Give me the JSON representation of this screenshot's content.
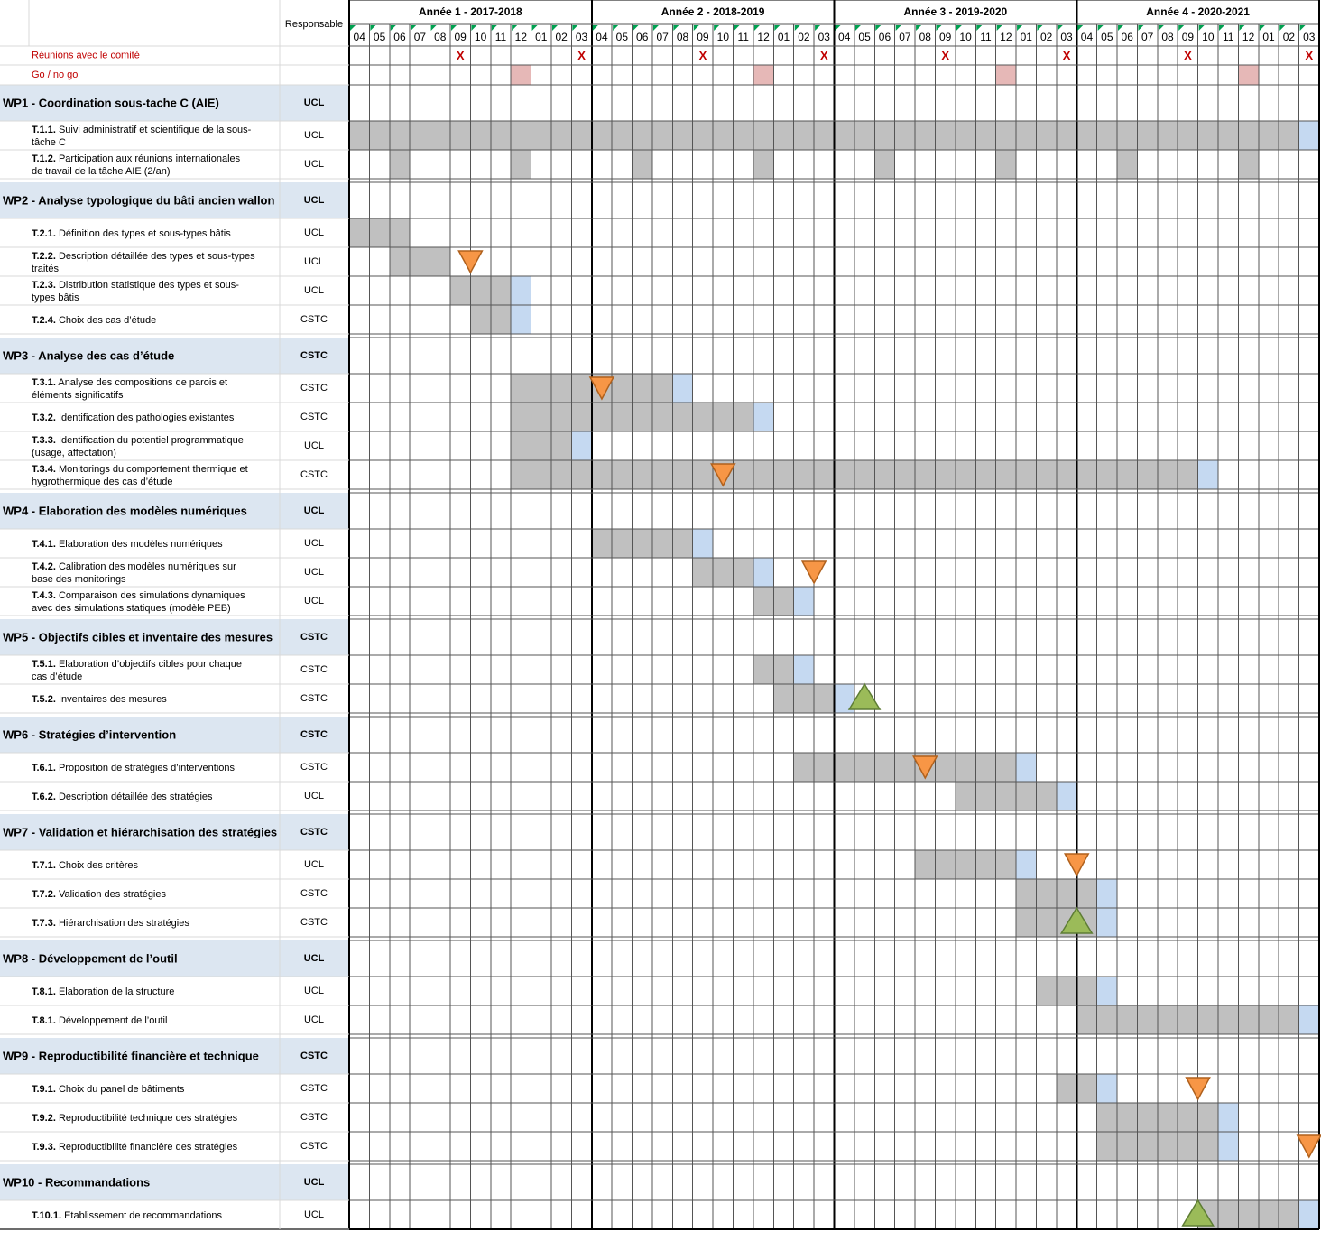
{
  "chart_data": {
    "type": "gantt",
    "header": {
      "responsable": "Responsable"
    },
    "years": [
      {
        "label": "Année 1 - 2017-2018"
      },
      {
        "label": "Année 2 - 2018-2019"
      },
      {
        "label": "Année 3 - 2019-2020"
      },
      {
        "label": "Année 4 - 2020-2021"
      }
    ],
    "months": [
      "04",
      "05",
      "06",
      "07",
      "08",
      "09",
      "10",
      "11",
      "12",
      "01",
      "02",
      "03"
    ],
    "colors": {
      "bar": "#c0c0c0",
      "end": "#c5d9f1",
      "wp_band": "#dce6f1",
      "go_no_go": "#e6b8b7",
      "meeting_mark": "#c00000",
      "milestone_down": "#f79646",
      "milestone_up": "#9bbb59"
    },
    "special_rows": [
      {
        "label": "Réunions avec le comité",
        "mark": "X",
        "months": [
          6,
          12,
          18,
          24,
          30,
          36,
          42,
          48
        ]
      },
      {
        "label": "Go / no go",
        "months": [
          9,
          21,
          33,
          45
        ]
      }
    ],
    "rows": [
      {
        "kind": "wp",
        "label": "WP1 - Coordination sous-tache C (AIE)",
        "resp": "UCL"
      },
      {
        "kind": "task",
        "code": "T.1.1.",
        "text": " Suivi administratif et scientifique de la sous-",
        "text2": "tâche C",
        "resp": "UCL",
        "bars": [
          [
            1,
            47
          ]
        ],
        "end": [
          48
        ]
      },
      {
        "kind": "task",
        "code": "T.1.2.",
        "text": " Participation aux réunions internationales",
        "text2": "de travail de la tâche AIE (2/an)",
        "resp": "UCL",
        "bars": [
          [
            3,
            3
          ],
          [
            9,
            9
          ],
          [
            15,
            15
          ],
          [
            21,
            21
          ],
          [
            27,
            27
          ],
          [
            33,
            33
          ],
          [
            39,
            39
          ],
          [
            45,
            45
          ]
        ]
      },
      {
        "kind": "wp",
        "label": "WP2 - Analyse typologique du bâti ancien wallon",
        "resp": "UCL"
      },
      {
        "kind": "task",
        "code": "T.2.1.",
        "text": " Définition des types et sous-types bâtis",
        "resp": "UCL",
        "bars": [
          [
            1,
            3
          ]
        ]
      },
      {
        "kind": "task",
        "code": "T.2.2.",
        "text": " Description détaillée des types et sous-types",
        "text2": "traités",
        "resp": "UCL",
        "bars": [
          [
            3,
            5
          ]
        ],
        "milestones": [
          {
            "type": "down",
            "month": 6.0
          }
        ]
      },
      {
        "kind": "task",
        "code": "T.2.3.",
        "text": " Distribution statistique des types et sous-",
        "text2": "types bâtis",
        "resp": "UCL",
        "bars": [
          [
            6,
            8
          ]
        ],
        "end": [
          9
        ]
      },
      {
        "kind": "task",
        "code": "T.2.4.",
        "text": " Choix des cas d’étude",
        "resp": "CSTC",
        "bars": [
          [
            7,
            8
          ]
        ],
        "end": [
          9
        ]
      },
      {
        "kind": "wp",
        "label": "WP3 - Analyse des cas d’étude",
        "resp": "CSTC"
      },
      {
        "kind": "task",
        "code": "T.3.1.",
        "text": " Analyse des compositions de parois et",
        "text2": "éléments significatifs",
        "resp": "CSTC",
        "bars": [
          [
            9,
            16
          ]
        ],
        "end": [
          17
        ],
        "milestones": [
          {
            "type": "down",
            "month": 12.5
          }
        ]
      },
      {
        "kind": "task",
        "code": "T.3.2.",
        "text": " Identification des pathologies existantes",
        "resp": "CSTC",
        "bars": [
          [
            9,
            20
          ]
        ],
        "end": [
          21
        ]
      },
      {
        "kind": "task",
        "code": "T.3.3.",
        "text": " Identification du potentiel programmatique",
        "text2": "(usage, affectation)",
        "resp": "UCL",
        "bars": [
          [
            9,
            11
          ]
        ],
        "end": [
          12
        ]
      },
      {
        "kind": "task",
        "code": "T.3.4.",
        "text": " Monitorings du comportement thermique et",
        "text2": "hygrothermique des cas d’étude",
        "resp": "CSTC",
        "bars": [
          [
            9,
            42
          ]
        ],
        "end": [
          43
        ],
        "milestones": [
          {
            "type": "down",
            "month": 18.5
          }
        ]
      },
      {
        "kind": "wp",
        "label": "WP4 - Elaboration des modèles numériques",
        "resp": "UCL"
      },
      {
        "kind": "task",
        "code": "T.4.1.",
        "text": " Elaboration des modèles numériques",
        "resp": "UCL",
        "bars": [
          [
            13,
            17
          ]
        ],
        "end": [
          18
        ]
      },
      {
        "kind": "task",
        "code": "T.4.2.",
        "text": " Calibration des modèles numériques sur",
        "text2": "base des monitorings",
        "resp": "UCL",
        "bars": [
          [
            18,
            20
          ]
        ],
        "end": [
          21
        ],
        "milestones": [
          {
            "type": "down",
            "month": 23.0
          }
        ]
      },
      {
        "kind": "task",
        "code": "T.4.3.",
        "text": " Comparaison des simulations dynamiques",
        "text2": "avec des simulations statiques (modèle PEB)",
        "resp": "UCL",
        "bars": [
          [
            21,
            22
          ]
        ],
        "end": [
          23
        ]
      },
      {
        "kind": "wp",
        "label": "WP5 - Objectifs cibles et inventaire des mesures",
        "resp": "CSTC"
      },
      {
        "kind": "task",
        "code": "T.5.1.",
        "text": " Elaboration d’objectifs cibles pour chaque",
        "text2": "cas d’étude",
        "resp": "CSTC",
        "bars": [
          [
            21,
            22
          ]
        ],
        "end": [
          23
        ]
      },
      {
        "kind": "task",
        "code": "T.5.2.",
        "text": " Inventaires des mesures",
        "resp": "CSTC",
        "bars": [
          [
            22,
            24
          ]
        ],
        "end": [
          25
        ],
        "milestones": [
          {
            "type": "up",
            "month": 25.5
          }
        ]
      },
      {
        "kind": "wp",
        "label": "WP6 - Stratégies d’intervention",
        "resp": "CSTC"
      },
      {
        "kind": "task",
        "code": "T.6.1.",
        "text": " Proposition de stratégies d’interventions",
        "resp": "CSTC",
        "bars": [
          [
            23,
            33
          ]
        ],
        "end": [
          34
        ],
        "milestones": [
          {
            "type": "down",
            "month": 28.5
          }
        ]
      },
      {
        "kind": "task",
        "code": "T.6.2.",
        "text": " Description détaillée des stratégies",
        "resp": "UCL",
        "bars": [
          [
            31,
            35
          ]
        ],
        "end": [
          36
        ]
      },
      {
        "kind": "wp",
        "label": "WP7 - Validation et hiérarchisation des stratégies",
        "resp": "CSTC"
      },
      {
        "kind": "task",
        "code": "T.7.1.",
        "text": " Choix des critères",
        "resp": "UCL",
        "bars": [
          [
            29,
            33
          ]
        ],
        "end": [
          34
        ],
        "milestones": [
          {
            "type": "down",
            "month": 36.0
          }
        ]
      },
      {
        "kind": "task",
        "code": "T.7.2.",
        "text": " Validation des stratégies",
        "resp": "CSTC",
        "bars": [
          [
            34,
            37
          ]
        ],
        "end": [
          38
        ]
      },
      {
        "kind": "task",
        "code": "T.7.3.",
        "text": " Hiérarchisation des stratégies",
        "resp": "CSTC",
        "bars": [
          [
            34,
            37
          ]
        ],
        "end": [
          38
        ],
        "milestones": [
          {
            "type": "up",
            "month": 36.0
          }
        ]
      },
      {
        "kind": "wp",
        "label": "WP8 - Développement de l’outil",
        "resp": "UCL"
      },
      {
        "kind": "task",
        "code": "T.8.1.",
        "text": " Elaboration de la structure",
        "resp": "UCL",
        "bars": [
          [
            35,
            37
          ]
        ],
        "end": [
          38
        ]
      },
      {
        "kind": "task",
        "code": "T.8.1.",
        "text": " Développement de l’outil",
        "resp": "UCL",
        "bars": [
          [
            37,
            47
          ]
        ],
        "end": [
          48
        ]
      },
      {
        "kind": "wp",
        "label": "WP9 - Reproductibilité financière et technique",
        "resp": "CSTC"
      },
      {
        "kind": "task",
        "code": "T.9.1.",
        "text": " Choix du panel de bâtiments",
        "resp": "CSTC",
        "bars": [
          [
            36,
            37
          ]
        ],
        "end": [
          38
        ],
        "milestones": [
          {
            "type": "down",
            "month": 42.0
          }
        ]
      },
      {
        "kind": "task",
        "code": "T.9.2.",
        "text": " Reproductibilité technique des stratégies",
        "resp": "CSTC",
        "bars": [
          [
            38,
            43
          ]
        ],
        "end": [
          44
        ]
      },
      {
        "kind": "task",
        "code": "T.9.3.",
        "text": " Reproductibilité financière des stratégies",
        "resp": "CSTC",
        "bars": [
          [
            38,
            43
          ]
        ],
        "end": [
          44
        ],
        "milestones": [
          {
            "type": "down",
            "month": 47.5
          }
        ]
      },
      {
        "kind": "wp",
        "label": "WP10 - Recommandations",
        "resp": "UCL"
      },
      {
        "kind": "task",
        "code": "T.10.1.",
        "text": " Etablissement de recommandations",
        "resp": "UCL",
        "bars": [
          [
            43,
            47
          ]
        ],
        "end": [
          48
        ],
        "milestones": [
          {
            "type": "up",
            "month": 42.0
          }
        ]
      }
    ]
  }
}
